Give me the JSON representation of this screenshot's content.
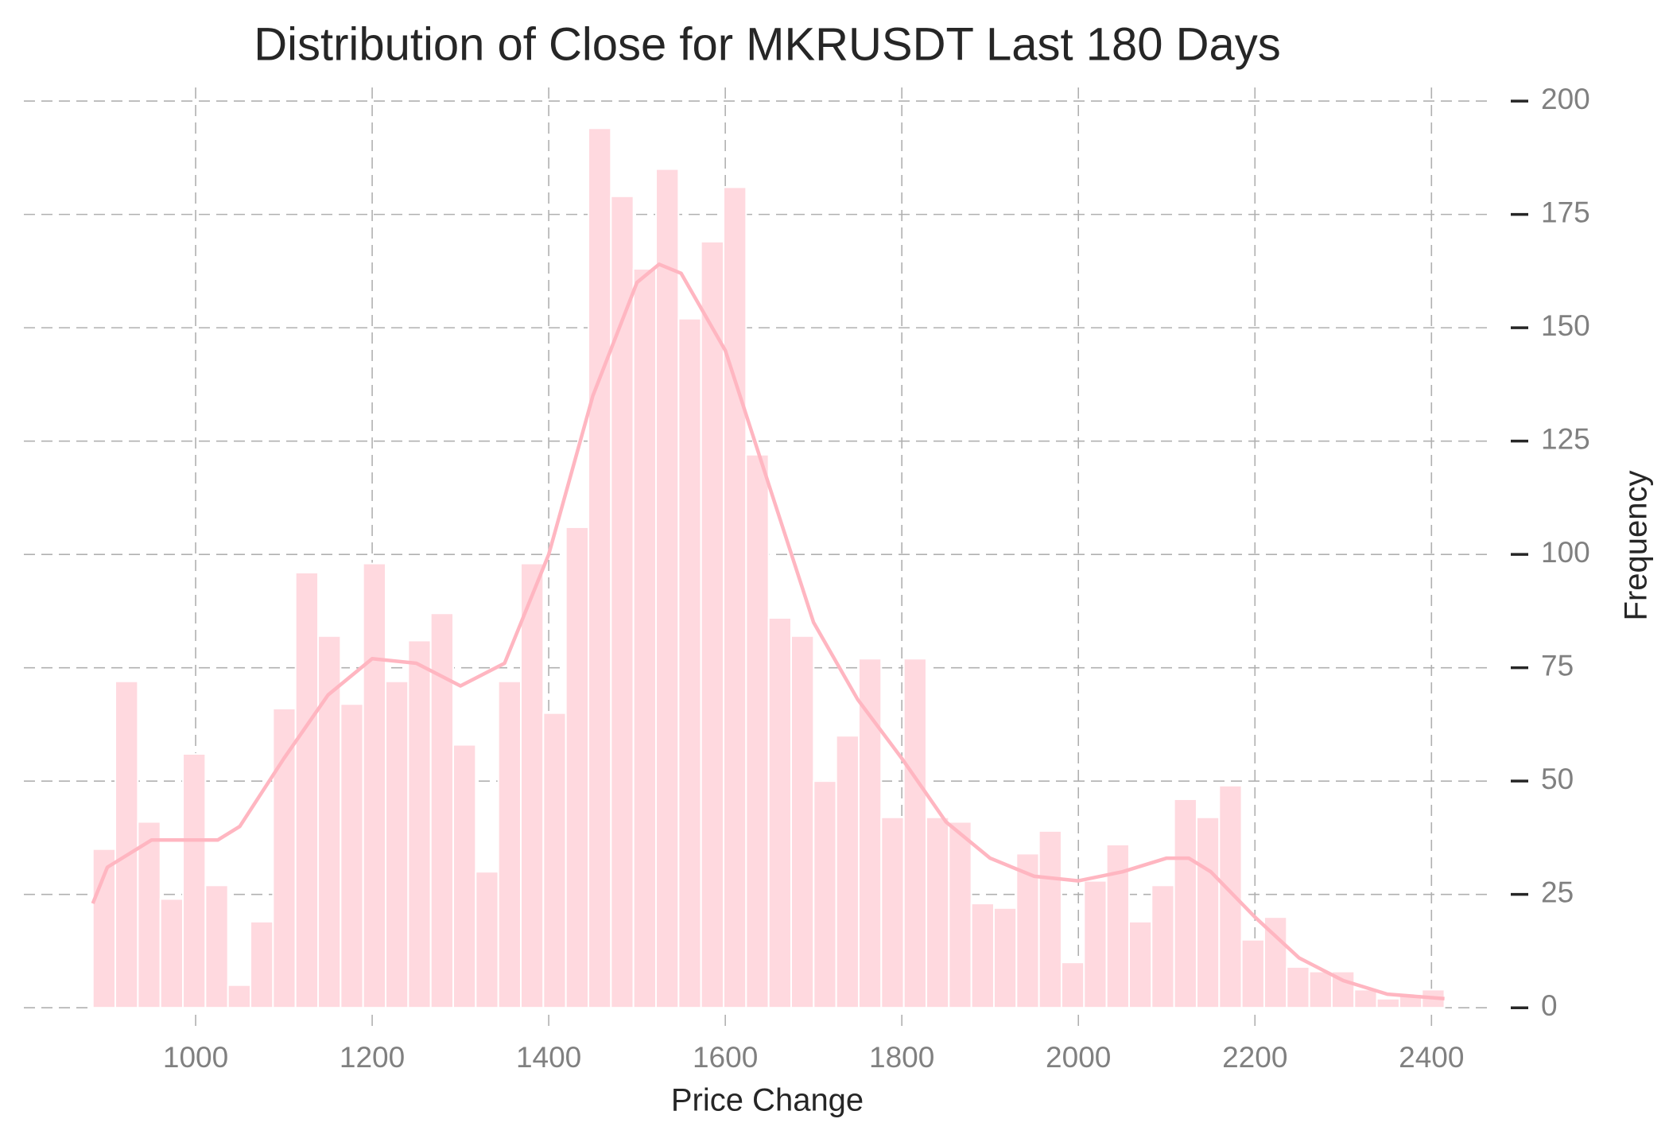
{
  "chart_data": {
    "type": "histogram",
    "title": "Distribution of Close for MKRUSDT Last 180 Days",
    "x_label": "Price Change",
    "y_label": "Frequency",
    "bins": [
      883.5,
      909.02,
      934.54,
      960.06,
      985.58,
      1011.1,
      1036.62,
      1062.14,
      1087.66,
      1113.18,
      1138.7,
      1164.22,
      1189.74,
      1215.26,
      1240.78,
      1266.3,
      1291.82,
      1317.34,
      1342.86,
      1368.38,
      1393.9,
      1419.42,
      1444.94,
      1470.46,
      1495.98,
      1521.5,
      1547.02,
      1572.54,
      1598.06,
      1623.58,
      1649.1,
      1674.62,
      1700.14,
      1725.66,
      1751.18,
      1776.7,
      1802.22,
      1827.74,
      1853.26,
      1878.78,
      1904.3,
      1929.82,
      1955.34,
      1980.86,
      2006.38,
      2031.9,
      2057.42,
      2082.94,
      2108.46,
      2133.98,
      2159.5,
      2185.02,
      2210.54,
      2236.06,
      2261.58,
      2287.1,
      2312.62,
      2338.14,
      2363.66,
      2389.18,
      2414.7
    ],
    "counts": [
      35,
      72,
      41,
      24,
      56,
      27,
      5,
      19,
      66,
      96,
      82,
      67,
      98,
      72,
      81,
      87,
      58,
      30,
      72,
      98,
      65,
      106,
      194,
      179,
      163,
      185,
      152,
      169,
      181,
      122,
      86,
      82,
      50,
      60,
      77,
      42,
      77,
      42,
      41,
      23,
      22,
      34,
      39,
      10,
      28,
      36,
      19,
      27,
      46,
      42,
      49,
      15,
      20,
      9,
      8,
      8,
      4,
      2,
      3,
      4
    ],
    "color": "#ffd9df",
    "kde": {
      "color": "#ffb6c1",
      "x": [
        883.5,
        900,
        950,
        1000,
        1025,
        1050,
        1100,
        1150,
        1200,
        1250,
        1300,
        1350,
        1400,
        1450,
        1500,
        1525,
        1550,
        1600,
        1650,
        1700,
        1750,
        1800,
        1850,
        1900,
        1950,
        2000,
        2050,
        2100,
        2125,
        2150,
        2200,
        2250,
        2300,
        2350,
        2414.7
      ],
      "values": [
        23,
        31,
        37,
        37,
        37,
        40,
        55,
        69,
        77,
        76,
        71,
        76,
        100,
        135,
        160,
        164,
        162,
        145,
        115,
        85,
        68,
        55,
        41,
        33,
        29,
        28,
        30,
        33,
        33,
        30,
        20,
        11,
        6,
        3,
        2
      ]
    },
    "xlim": [
      805.4,
      2470
    ],
    "ylim": [
      -4,
      203
    ],
    "xticks": [
      1000,
      1200,
      1400,
      1600,
      1800,
      2000,
      2200,
      2400
    ],
    "yticks": [
      0,
      25,
      50,
      75,
      100,
      125,
      150,
      175,
      200
    ],
    "grid": true
  }
}
